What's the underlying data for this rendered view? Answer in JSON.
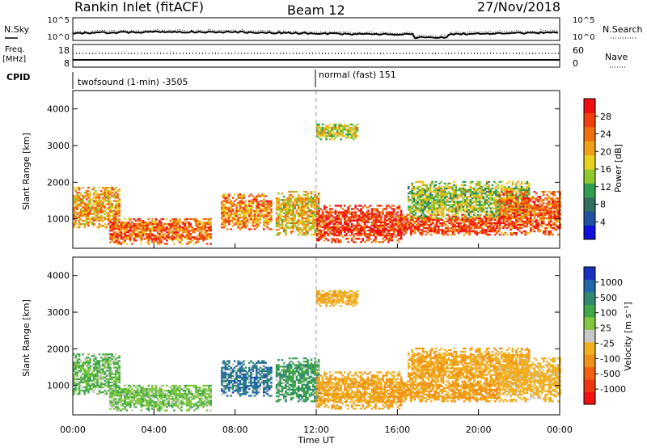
{
  "header": {
    "title": "Rankin Inlet (fitACF)",
    "beam": "Beam 12",
    "date": "27/Nov/2018"
  },
  "top_panel": {
    "left_label": "N.Sky",
    "right_label": "N.Search",
    "left_ticks": [
      "10^5",
      "10^0"
    ],
    "right_ticks": [
      "10^5",
      "10^0"
    ]
  },
  "freq_panel": {
    "left_label_1": "Freq.",
    "left_label_2": "[MHz]",
    "right_label": "Nave",
    "left_ticks": [
      "18",
      "8"
    ],
    "right_ticks": [
      "60",
      "0"
    ]
  },
  "cpid_panel": {
    "label": "CPID",
    "mode_1": "twofsound (1-min) -3505",
    "mode_2": "normal (fast) 151"
  },
  "power_panel": {
    "ylabel": "Slant Range [km]",
    "yticks": [
      "4000",
      "3000",
      "2000",
      "1000"
    ],
    "colorbar_label": "Power [dB]",
    "colorbar_ticks": [
      "28",
      "24",
      "20",
      "16",
      "12",
      "8",
      "4"
    ],
    "colors": [
      "#1010d8",
      "#2050a0",
      "#307060",
      "#30a050",
      "#90c830",
      "#e8d020",
      "#f0a018",
      "#f07010",
      "#f04010",
      "#f01010"
    ]
  },
  "velocity_panel": {
    "ylabel": "Slant Range [km]",
    "yticks": [
      "4000",
      "3000",
      "2000",
      "1000"
    ],
    "colorbar_label": "Velocity [m s⁻¹]",
    "colorbar_ticks": [
      "1000",
      "500",
      "100",
      "25",
      "-25",
      "-100",
      "-500",
      "-1000"
    ],
    "colors": [
      "#1830c0",
      "#2068a8",
      "#308870",
      "#40a848",
      "#80c840",
      "#c8c8c8",
      "#f0b020",
      "#f09018",
      "#f06010",
      "#f03810",
      "#f01010"
    ],
    "ground_scatter_color": "#c8c8c8"
  },
  "x_axis": {
    "label": "Time UT",
    "ticks": [
      "00:00",
      "04:00",
      "08:00",
      "12:00",
      "16:00",
      "20:00",
      "00:00"
    ]
  },
  "chart_data": {
    "type": "heatmap",
    "title": "Rankin Inlet (fitACF)",
    "xlabel": "Time UT",
    "ylabel": "Slant Range [km]",
    "x_range_hours": [
      0,
      24
    ],
    "y_range_km": [
      200,
      4500
    ],
    "grid": false,
    "regions": [
      {
        "t0": 0.0,
        "t1": 2.3,
        "r0": 750,
        "r1": 1850,
        "power": 20,
        "velocity": 30
      },
      {
        "t0": 1.8,
        "t1": 6.8,
        "r0": 300,
        "r1": 1000,
        "power": 24,
        "velocity": 20
      },
      {
        "t0": 7.3,
        "t1": 9.8,
        "r0": 700,
        "r1": 1650,
        "power": 22,
        "velocity": 600
      },
      {
        "t0": 10.0,
        "t1": 12.1,
        "r0": 550,
        "r1": 1750,
        "power": 18,
        "velocity": 90
      },
      {
        "t0": 12.0,
        "t1": 16.2,
        "r0": 350,
        "r1": 1350,
        "power": 28,
        "velocity": -450
      },
      {
        "t0": 12.0,
        "t1": 14.0,
        "r0": 3150,
        "r1": 3600,
        "power": 16,
        "velocity": -350
      },
      {
        "t0": 16.0,
        "t1": 21.0,
        "r0": 550,
        "r1": 1100,
        "power": 26,
        "velocity": -500
      },
      {
        "t0": 16.5,
        "t1": 22.5,
        "r0": 1000,
        "r1": 2000,
        "power": 14,
        "velocity": -400
      },
      {
        "t0": 21.0,
        "t1": 24.0,
        "r0": 550,
        "r1": 1750,
        "power": 25,
        "velocity": -200
      }
    ]
  }
}
